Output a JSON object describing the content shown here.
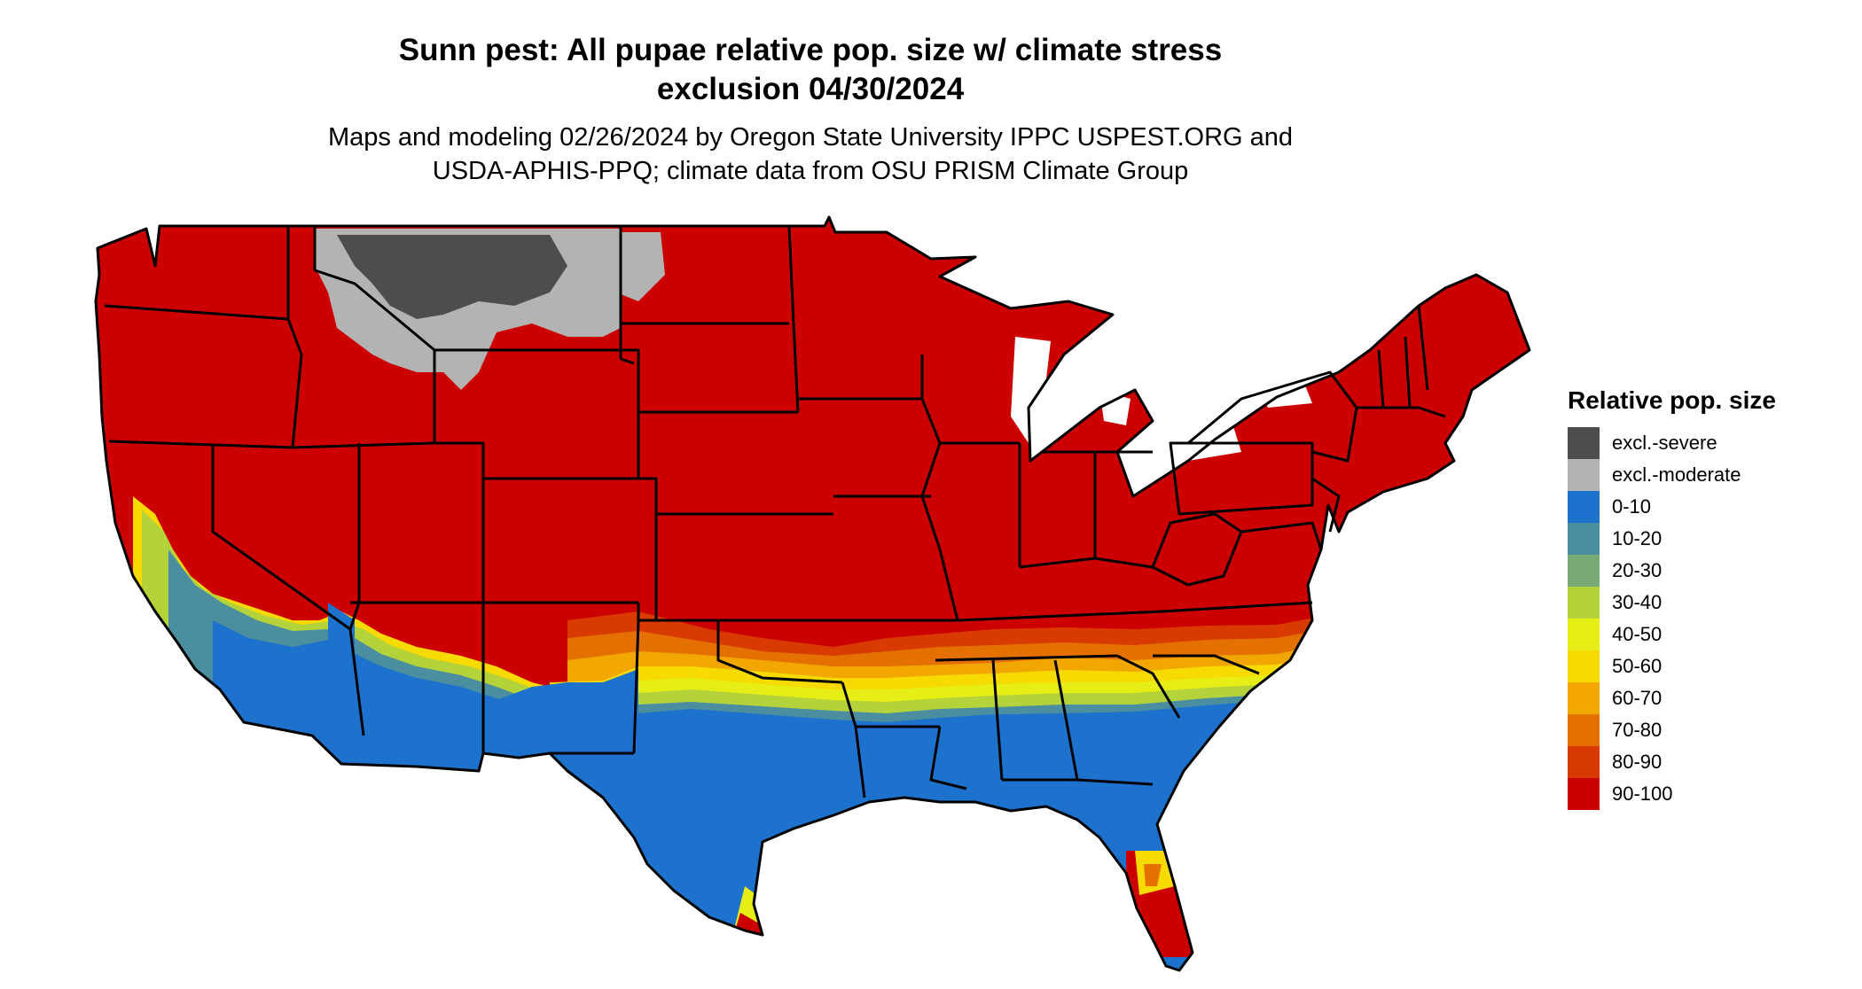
{
  "title_line1": "Sunn pest: All pupae relative pop. size w/ climate stress",
  "title_line2": "exclusion 04/30/2024",
  "subtitle_line1": "Maps and modeling 02/26/2024 by Oregon State University IPPC USPEST.ORG and",
  "subtitle_line2": "USDA-APHIS-PPQ; climate data from OSU PRISM Climate Group",
  "legend": {
    "title": "Relative pop. size",
    "items": [
      {
        "label": "excl.-severe",
        "color": "#4d4d4d"
      },
      {
        "label": "excl.-moderate",
        "color": "#b3b3b3"
      },
      {
        "label": "0-10",
        "color": "#1c72cc"
      },
      {
        "label": "10-20",
        "color": "#4a8ea0"
      },
      {
        "label": "20-30",
        "color": "#78ab74"
      },
      {
        "label": "30-40",
        "color": "#b4d23a"
      },
      {
        "label": "40-50",
        "color": "#e6ee15"
      },
      {
        "label": "50-60",
        "color": "#f6da00"
      },
      {
        "label": "60-70",
        "color": "#f2a600"
      },
      {
        "label": "70-80",
        "color": "#e47000"
      },
      {
        "label": "80-90",
        "color": "#d83a00"
      },
      {
        "label": "90-100",
        "color": "#cc0000"
      }
    ]
  }
}
